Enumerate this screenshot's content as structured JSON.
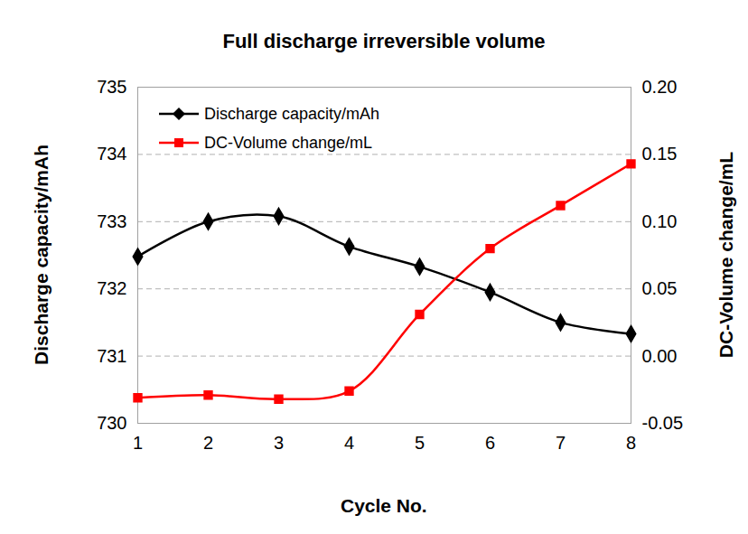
{
  "chart_data": {
    "type": "line",
    "title": "Full discharge irreversible volume",
    "xlabel": "Cycle No.",
    "ylabel": "Discharge capacity/mAh",
    "y2label": "DC-Volume change/mL",
    "x": [
      1,
      2,
      3,
      4,
      5,
      6,
      7,
      8
    ],
    "series": [
      {
        "name": "Discharge capacity/mAh",
        "color": "#000000",
        "marker": "diamond",
        "line_style": "smooth",
        "values": [
          732.48,
          733.0,
          733.08,
          732.63,
          732.33,
          731.95,
          731.5,
          731.33
        ]
      },
      {
        "name": "DC-Volume change/mL",
        "color": "#ff0000",
        "marker": "square",
        "line_style": "smooth",
        "axis": "y2",
        "values": [
          -0.031,
          -0.029,
          -0.032,
          -0.026,
          0.031,
          0.08,
          0.112,
          0.143
        ]
      }
    ],
    "xlim": [
      1,
      8
    ],
    "xticks": [
      1,
      2,
      3,
      4,
      5,
      6,
      7,
      8
    ],
    "ylim": [
      730,
      735
    ],
    "yticks": [
      730,
      731,
      732,
      733,
      734,
      735
    ],
    "y2lim": [
      -0.05,
      0.2
    ],
    "y2ticks": [
      -0.05,
      {
        "value": 0,
        "label": "0.00"
      },
      0.05,
      {
        "value": 0.1,
        "label": "0.10"
      },
      0.15,
      {
        "value": 0.2,
        "label": "0.20"
      }
    ],
    "grid": true,
    "legend": "top-left"
  }
}
